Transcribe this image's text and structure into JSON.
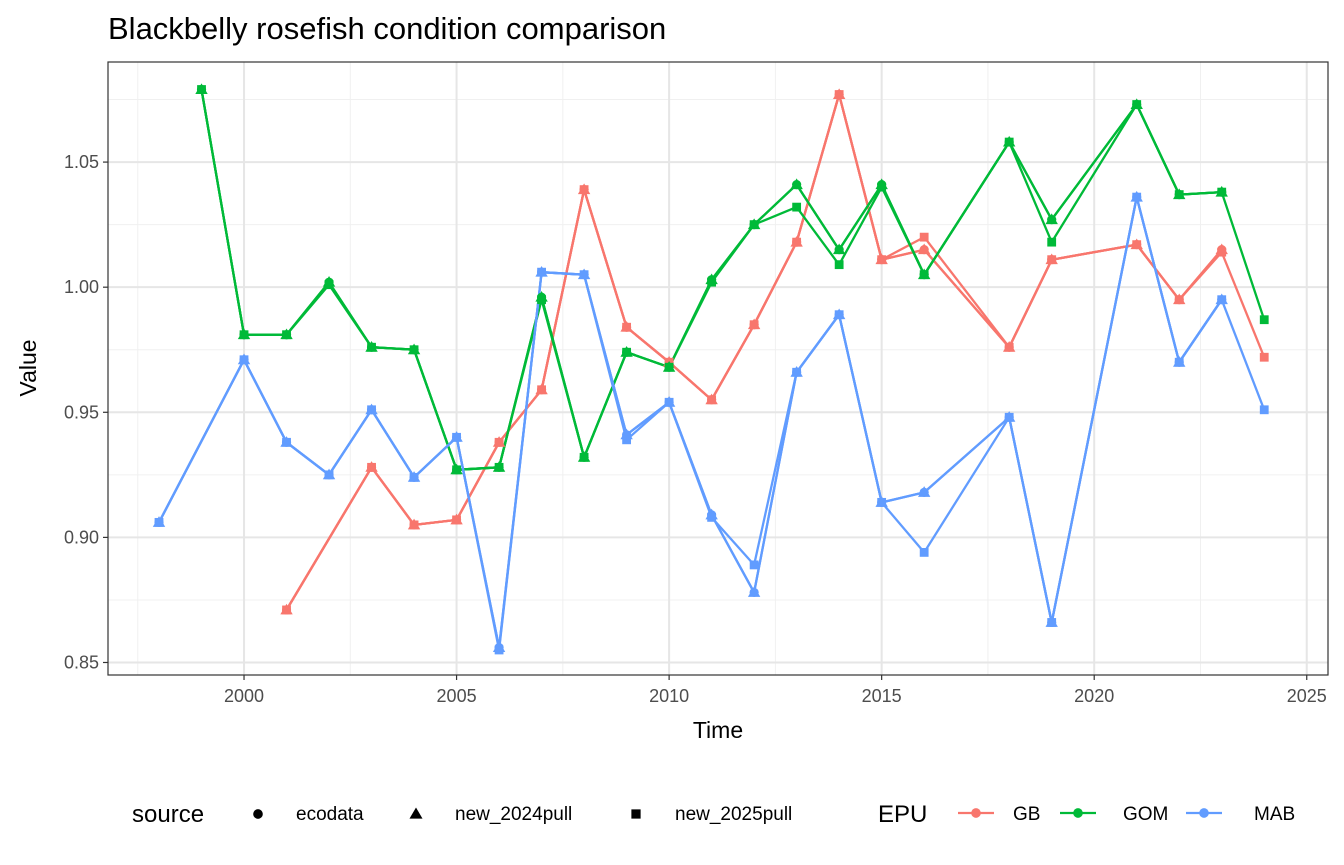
{
  "chart_data": {
    "type": "line",
    "title": "Blackbelly rosefish condition comparison",
    "xlabel": "Time",
    "ylabel": "Value",
    "xlim": [
      1996.8,
      2025.5
    ],
    "ylim": [
      0.845,
      1.09
    ],
    "x_ticks": [
      2000,
      2005,
      2010,
      2015,
      2020,
      2025
    ],
    "y_ticks": [
      0.85,
      0.9,
      0.95,
      1.0,
      1.05
    ],
    "y_tick_labels": [
      "0.85",
      "0.90",
      "0.95",
      "1.00",
      "1.05"
    ],
    "grid": true,
    "legend_position": "bottom",
    "legend": {
      "shape_title": "source",
      "shape_entries": [
        {
          "label": "ecodata",
          "shape": "circle"
        },
        {
          "label": "new_2024pull",
          "shape": "triangle"
        },
        {
          "label": "new_2025pull",
          "shape": "square"
        }
      ],
      "color_title": "EPU",
      "color_entries": [
        {
          "label": "GB",
          "color": "#F8766D"
        },
        {
          "label": "GOM",
          "color": "#00BA38"
        },
        {
          "label": "MAB",
          "color": "#619CFF"
        }
      ]
    },
    "series": [
      {
        "epu": "GB",
        "source": "ecodata",
        "color": "#F8766D",
        "shape": "circle",
        "x": [
          2001,
          2003,
          2004,
          2005,
          2006,
          2007,
          2008,
          2009,
          2010,
          2011,
          2012,
          2013,
          2014,
          2015,
          2016,
          2018,
          2019,
          2021,
          2022,
          2023
        ],
        "y": [
          0.871,
          0.928,
          0.905,
          0.907,
          0.938,
          0.959,
          1.039,
          0.984,
          0.97,
          0.955,
          0.985,
          1.018,
          1.077,
          1.011,
          1.015,
          0.976,
          1.011,
          1.017,
          0.995,
          1.015
        ]
      },
      {
        "epu": "GB",
        "source": "new_2024pull",
        "color": "#F8766D",
        "shape": "triangle",
        "x": [
          2001,
          2003,
          2004,
          2005,
          2006,
          2007,
          2008,
          2009,
          2010,
          2011,
          2012,
          2013,
          2014,
          2015,
          2016,
          2018,
          2019,
          2021,
          2022,
          2023
        ],
        "y": [
          0.871,
          0.928,
          0.905,
          0.907,
          0.938,
          0.959,
          1.039,
          0.984,
          0.97,
          0.955,
          0.985,
          1.018,
          1.077,
          1.011,
          1.015,
          0.976,
          1.011,
          1.017,
          0.995,
          1.015
        ]
      },
      {
        "epu": "GB",
        "source": "new_2025pull",
        "color": "#F8766D",
        "shape": "square",
        "x": [
          2001,
          2003,
          2004,
          2005,
          2006,
          2007,
          2008,
          2009,
          2010,
          2011,
          2012,
          2013,
          2014,
          2015,
          2016,
          2018,
          2019,
          2021,
          2022,
          2023,
          2024
        ],
        "y": [
          0.871,
          0.928,
          0.905,
          0.907,
          0.938,
          0.959,
          1.039,
          0.984,
          0.97,
          0.955,
          0.985,
          1.018,
          1.077,
          1.011,
          1.02,
          0.976,
          1.011,
          1.017,
          0.995,
          1.014,
          0.972
        ]
      },
      {
        "epu": "GOM",
        "source": "ecodata",
        "color": "#00BA38",
        "shape": "circle",
        "x": [
          1999,
          2000,
          2001,
          2002,
          2003,
          2004,
          2005,
          2006,
          2007,
          2008,
          2009,
          2010,
          2011,
          2012,
          2013,
          2014,
          2015,
          2016,
          2018,
          2019,
          2021,
          2022,
          2023
        ],
        "y": [
          1.079,
          0.981,
          0.981,
          1.002,
          0.976,
          0.975,
          0.927,
          0.928,
          0.996,
          0.932,
          0.974,
          0.968,
          1.003,
          1.025,
          1.041,
          1.015,
          1.041,
          1.005,
          1.058,
          1.027,
          1.073,
          1.037,
          1.038
        ]
      },
      {
        "epu": "GOM",
        "source": "new_2024pull",
        "color": "#00BA38",
        "shape": "triangle",
        "x": [
          1999,
          2000,
          2001,
          2002,
          2003,
          2004,
          2005,
          2006,
          2007,
          2008,
          2009,
          2010,
          2011,
          2012,
          2013,
          2014,
          2015,
          2016,
          2018,
          2019,
          2021,
          2022,
          2023
        ],
        "y": [
          1.079,
          0.981,
          0.981,
          1.002,
          0.976,
          0.975,
          0.927,
          0.928,
          0.996,
          0.932,
          0.974,
          0.968,
          1.003,
          1.025,
          1.041,
          1.015,
          1.041,
          1.005,
          1.058,
          1.027,
          1.073,
          1.037,
          1.038
        ]
      },
      {
        "epu": "GOM",
        "source": "new_2025pull",
        "color": "#00BA38",
        "shape": "square",
        "x": [
          1999,
          2000,
          2001,
          2002,
          2003,
          2004,
          2005,
          2006,
          2007,
          2008,
          2009,
          2010,
          2011,
          2012,
          2013,
          2014,
          2015,
          2016,
          2018,
          2019,
          2021,
          2022,
          2023,
          2024
        ],
        "y": [
          1.079,
          0.981,
          0.981,
          1.001,
          0.976,
          0.975,
          0.927,
          0.928,
          0.995,
          0.932,
          0.974,
          0.968,
          1.002,
          1.025,
          1.032,
          1.009,
          1.04,
          1.005,
          1.058,
          1.018,
          1.073,
          1.037,
          1.038,
          0.987
        ]
      },
      {
        "epu": "MAB",
        "source": "ecodata",
        "color": "#619CFF",
        "shape": "circle",
        "x": [
          1998,
          2000,
          2001,
          2002,
          2003,
          2004,
          2005,
          2006,
          2007,
          2008,
          2009,
          2010,
          2011,
          2012,
          2013,
          2014,
          2015,
          2016,
          2018,
          2019,
          2021,
          2022,
          2023
        ],
        "y": [
          0.906,
          0.971,
          0.938,
          0.925,
          0.951,
          0.924,
          0.94,
          0.856,
          1.006,
          1.005,
          0.941,
          0.954,
          0.909,
          0.878,
          0.966,
          0.989,
          0.914,
          0.918,
          0.948,
          0.866,
          1.036,
          0.97,
          0.995
        ]
      },
      {
        "epu": "MAB",
        "source": "new_2024pull",
        "color": "#619CFF",
        "shape": "triangle",
        "x": [
          1998,
          2000,
          2001,
          2002,
          2003,
          2004,
          2005,
          2006,
          2007,
          2008,
          2009,
          2010,
          2011,
          2012,
          2013,
          2014,
          2015,
          2016,
          2018,
          2019,
          2021,
          2022,
          2023
        ],
        "y": [
          0.906,
          0.971,
          0.938,
          0.925,
          0.951,
          0.924,
          0.94,
          0.856,
          1.006,
          1.005,
          0.941,
          0.954,
          0.909,
          0.878,
          0.966,
          0.989,
          0.914,
          0.918,
          0.948,
          0.866,
          1.036,
          0.97,
          0.995
        ]
      },
      {
        "epu": "MAB",
        "source": "new_2025pull",
        "color": "#619CFF",
        "shape": "square",
        "x": [
          1998,
          2000,
          2001,
          2002,
          2003,
          2004,
          2005,
          2006,
          2007,
          2008,
          2009,
          2010,
          2011,
          2012,
          2013,
          2014,
          2015,
          2016,
          2018,
          2019,
          2021,
          2022,
          2023,
          2024
        ],
        "y": [
          0.906,
          0.971,
          0.938,
          0.925,
          0.951,
          0.924,
          0.94,
          0.855,
          1.006,
          1.005,
          0.939,
          0.954,
          0.908,
          0.889,
          0.966,
          0.989,
          0.914,
          0.894,
          0.948,
          0.866,
          1.036,
          0.97,
          0.995,
          0.951
        ]
      }
    ]
  }
}
